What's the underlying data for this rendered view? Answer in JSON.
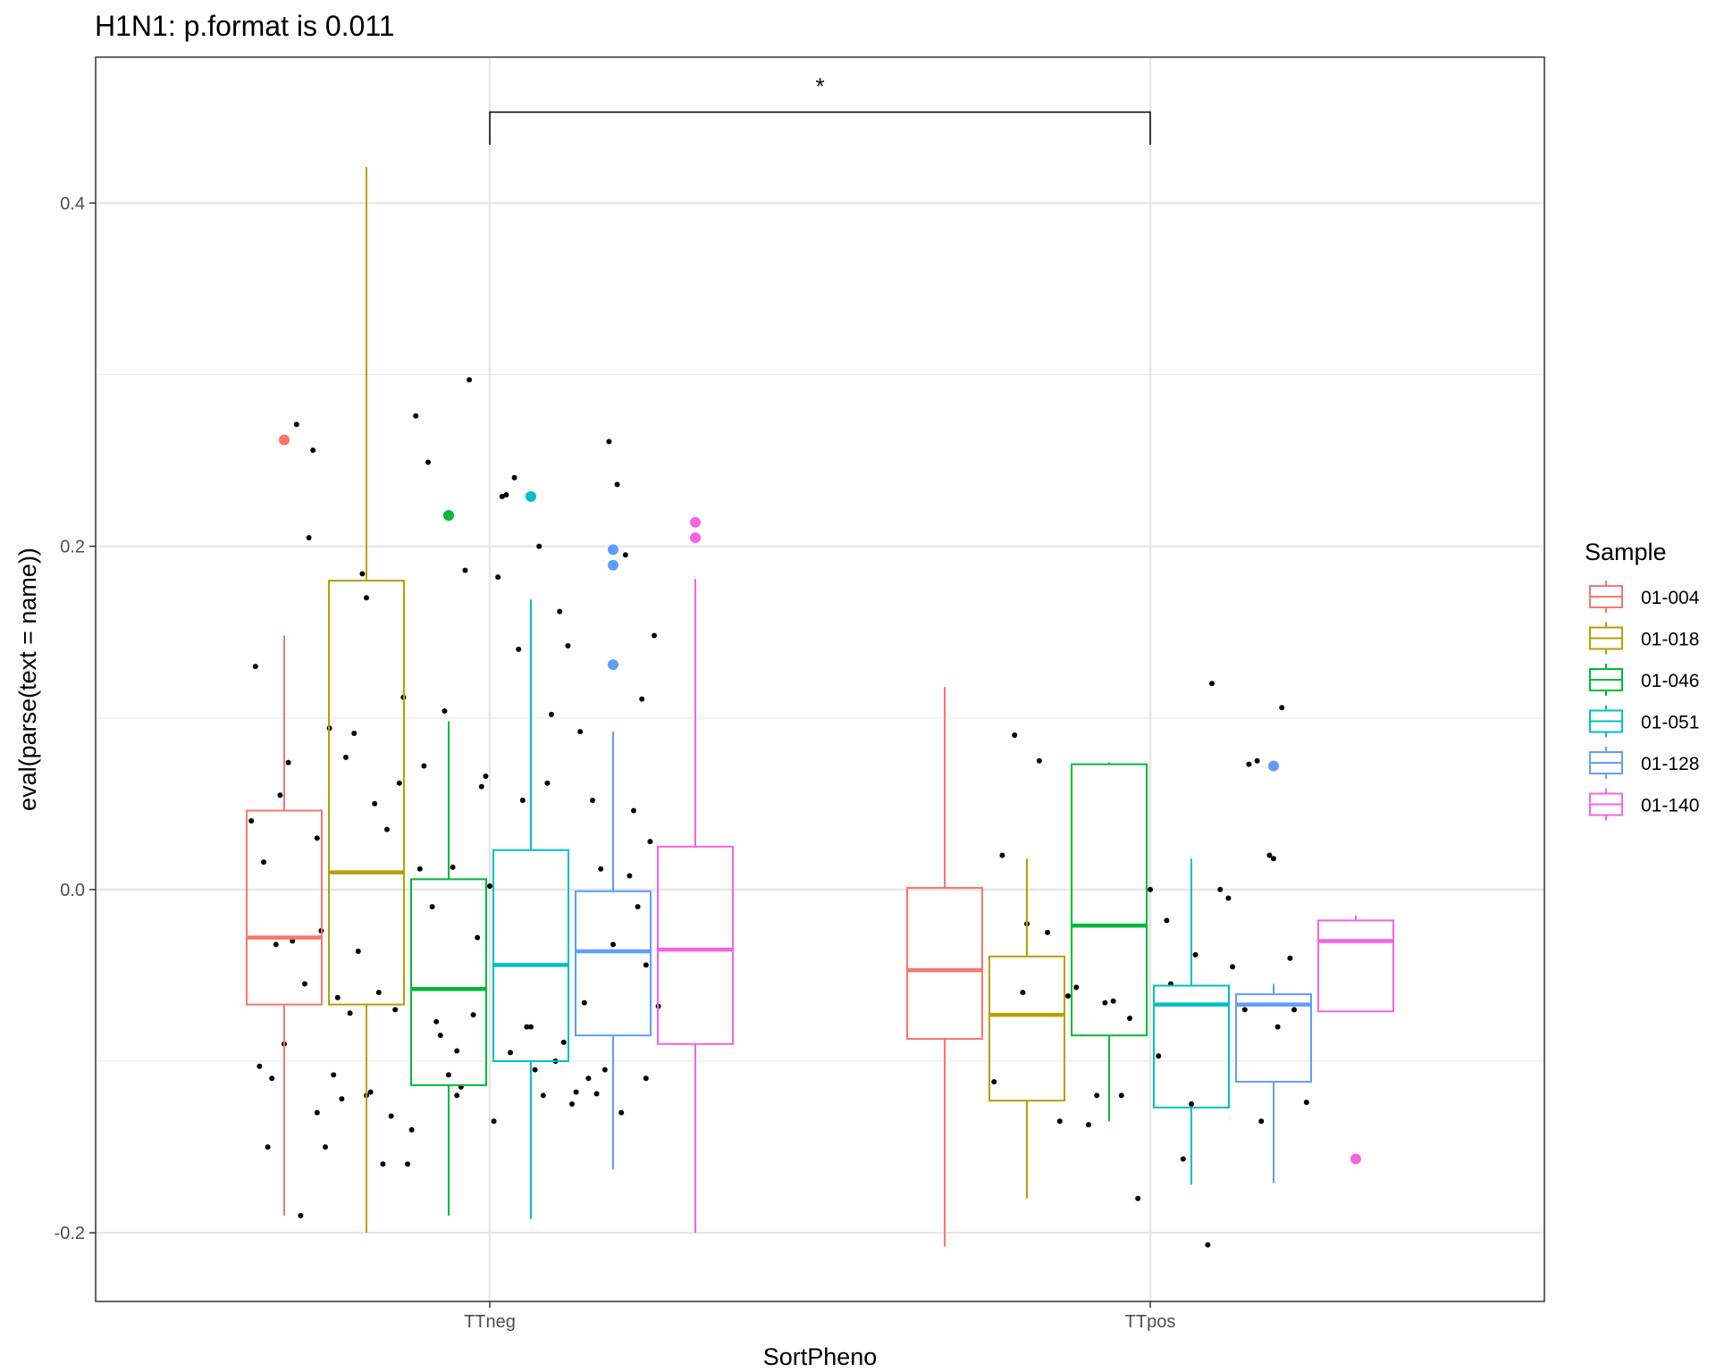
{
  "chart_data": {
    "type": "box",
    "title": "H1N1: p.format is 0.011",
    "xlabel": "SortPheno",
    "ylabel": "eval(parse(text = name))",
    "ylim": [
      -0.24,
      0.485
    ],
    "yticks": [
      -0.2,
      0.0,
      0.2,
      0.4
    ],
    "ytick_labels": [
      "-0.2",
      "0.0",
      "0.2",
      "0.4"
    ],
    "categories": [
      "TTneg",
      "TTpos"
    ],
    "legend": {
      "title": "Sample",
      "position": "right"
    },
    "significance": {
      "label": "*",
      "from": "TTneg",
      "to": "TTpos",
      "y": 0.453,
      "tip_y": 0.434
    },
    "series": [
      {
        "name": "01-004",
        "color": "#F8766D",
        "boxes": [
          {
            "group": "TTneg",
            "whisker_low": -0.19,
            "q1": -0.067,
            "median": -0.028,
            "q3": 0.046,
            "whisker_high": 0.148,
            "outliers": [
              0.262
            ]
          },
          {
            "group": "TTpos",
            "whisker_low": -0.208,
            "q1": -0.087,
            "median": -0.047,
            "q3": 0.001,
            "whisker_high": 0.118,
            "outliers": []
          }
        ]
      },
      {
        "name": "01-018",
        "color": "#B79F00",
        "boxes": [
          {
            "group": "TTneg",
            "whisker_low": -0.2,
            "q1": -0.067,
            "median": 0.01,
            "q3": 0.18,
            "whisker_high": 0.421,
            "outliers": []
          },
          {
            "group": "TTpos",
            "whisker_low": -0.18,
            "q1": -0.123,
            "median": -0.073,
            "q3": -0.039,
            "whisker_high": 0.018,
            "outliers": []
          }
        ]
      },
      {
        "name": "01-046",
        "color": "#00BA38",
        "boxes": [
          {
            "group": "TTneg",
            "whisker_low": -0.19,
            "q1": -0.114,
            "median": -0.058,
            "q3": 0.006,
            "whisker_high": 0.098,
            "outliers": [
              0.218
            ]
          },
          {
            "group": "TTpos",
            "whisker_low": -0.135,
            "q1": -0.085,
            "median": -0.021,
            "q3": 0.073,
            "whisker_high": 0.074,
            "outliers": []
          }
        ]
      },
      {
        "name": "01-051",
        "color": "#00BFC4",
        "boxes": [
          {
            "group": "TTneg",
            "whisker_low": -0.192,
            "q1": -0.1,
            "median": -0.044,
            "q3": 0.023,
            "whisker_high": 0.169,
            "outliers": [
              0.229
            ]
          },
          {
            "group": "TTpos",
            "whisker_low": -0.172,
            "q1": -0.127,
            "median": -0.067,
            "q3": -0.056,
            "whisker_high": 0.018,
            "outliers": []
          }
        ]
      },
      {
        "name": "01-128",
        "color": "#619CFF",
        "boxes": [
          {
            "group": "TTneg",
            "whisker_low": -0.163,
            "q1": -0.085,
            "median": -0.036,
            "q3": -0.001,
            "whisker_high": 0.092,
            "outliers": [
              0.198,
              0.189,
              0.131
            ]
          },
          {
            "group": "TTpos",
            "whisker_low": -0.171,
            "q1": -0.112,
            "median": -0.067,
            "q3": -0.061,
            "whisker_high": -0.055,
            "outliers": [
              0.072
            ]
          }
        ]
      },
      {
        "name": "01-140",
        "color": "#F564E3",
        "boxes": [
          {
            "group": "TTneg",
            "whisker_low": -0.2,
            "q1": -0.09,
            "median": -0.035,
            "q3": 0.025,
            "whisker_high": 0.181,
            "outliers": [
              0.214,
              0.205
            ]
          },
          {
            "group": "TTpos",
            "whisker_low": -0.071,
            "q1": -0.071,
            "median": -0.03,
            "q3": -0.018,
            "whisker_high": -0.015,
            "outliers": [
              -0.157
            ]
          }
        ]
      }
    ],
    "jitter_points": {
      "color": "#000000",
      "TTneg": {
        "x_offsets": [
          -0.57,
          -0.54,
          -0.49,
          -0.46,
          -0.43,
          -0.39,
          -0.36,
          -0.33,
          -0.3,
          -0.26,
          -0.21,
          -0.18,
          -0.15,
          -0.11,
          -0.08,
          -0.05,
          -0.02,
          0.02,
          0.06,
          0.09,
          0.12,
          0.17,
          0.21,
          0.25,
          0.29,
          0.33,
          0.37,
          0.4,
          -0.58,
          -0.56,
          -0.51,
          -0.47,
          -0.44,
          -0.41,
          -0.37,
          -0.34,
          -0.31,
          -0.28,
          -0.24,
          -0.2,
          -0.16,
          -0.13,
          -0.09,
          -0.06,
          -0.03,
          0.0,
          0.04,
          0.08,
          0.11,
          0.15,
          0.19,
          0.23,
          0.27,
          0.31,
          0.35,
          0.39,
          -0.55,
          -0.52,
          -0.48,
          -0.45,
          -0.42,
          -0.38,
          -0.35,
          -0.32,
          -0.29,
          -0.25,
          -0.22,
          -0.17,
          -0.14,
          -0.1,
          -0.07,
          -0.04,
          -0.01,
          0.03,
          0.07,
          0.1,
          0.14,
          0.18,
          0.22,
          0.26,
          0.3,
          0.34,
          0.38,
          0.41,
          -0.53,
          -0.5,
          -0.4,
          -0.27,
          -0.19,
          -0.12,
          0.05,
          0.13,
          0.2,
          0.28,
          0.36,
          -0.42,
          -0.3,
          -0.23,
          -0.08,
          0.01,
          0.16,
          0.24,
          0.32,
          0.38
        ],
        "y": [
          0.13,
          -0.15,
          0.074,
          -0.19,
          0.256,
          0.094,
          -0.122,
          0.091,
          0.17,
          -0.16,
          0.112,
          0.276,
          0.249,
          0.104,
          -0.094,
          0.297,
          0.06,
          0.182,
          0.24,
          -0.08,
          0.2,
          0.162,
          -0.118,
          0.052,
          0.261,
          0.195,
          0.111,
          0.148,
          0.04,
          -0.103,
          0.055,
          0.271,
          0.205,
          -0.024,
          -0.063,
          -0.072,
          0.184,
          0.05,
          -0.132,
          -0.16,
          0.072,
          -0.077,
          0.013,
          0.186,
          -0.028,
          0.002,
          0.23,
          0.052,
          -0.105,
          0.102,
          0.142,
          -0.066,
          0.012,
          0.236,
          0.046,
          0.028,
          0.016,
          -0.032,
          -0.03,
          -0.055,
          0.03,
          -0.108,
          0.077,
          -0.036,
          -0.118,
          0.035,
          0.062,
          0.012,
          -0.01,
          -0.108,
          -0.115,
          -0.073,
          0.066,
          0.229,
          0.14,
          -0.08,
          0.062,
          -0.089,
          0.092,
          -0.119,
          -0.032,
          0.008,
          -0.044,
          -0.068,
          -0.11,
          -0.09,
          -0.15,
          -0.06,
          -0.14,
          -0.085,
          -0.095,
          -0.12,
          -0.125,
          -0.105,
          -0.01,
          -0.13,
          -0.12,
          -0.07,
          -0.12,
          -0.135,
          -0.1,
          -0.11,
          -0.13,
          -0.11
        ]
      },
      "TTpos": {
        "x_offsets": [
          -0.38,
          -0.33,
          -0.3,
          -0.27,
          -0.22,
          -0.18,
          -0.15,
          -0.11,
          -0.07,
          -0.03,
          0.0,
          0.02,
          0.05,
          0.08,
          0.11,
          0.14,
          0.17,
          0.2,
          0.24,
          0.27,
          0.3,
          0.32,
          0.35,
          0.38,
          -0.36,
          -0.31,
          -0.25,
          -0.2,
          -0.13,
          -0.09,
          -0.05,
          0.04,
          0.1,
          0.15,
          0.19,
          0.23,
          0.26,
          0.29,
          0.31,
          0.34
        ],
        "y": [
          -0.112,
          0.09,
          -0.02,
          0.075,
          -0.135,
          -0.057,
          -0.137,
          -0.066,
          -0.12,
          -0.18,
          0.0,
          -0.097,
          -0.055,
          -0.157,
          -0.038,
          -0.207,
          0.0,
          -0.045,
          0.073,
          -0.135,
          0.018,
          0.106,
          -0.07,
          -0.124,
          0.02,
          -0.06,
          -0.025,
          -0.062,
          -0.12,
          -0.065,
          -0.075,
          -0.018,
          -0.125,
          0.12,
          -0.005,
          -0.07,
          0.075,
          0.02,
          -0.08,
          -0.04
        ]
      }
    }
  }
}
